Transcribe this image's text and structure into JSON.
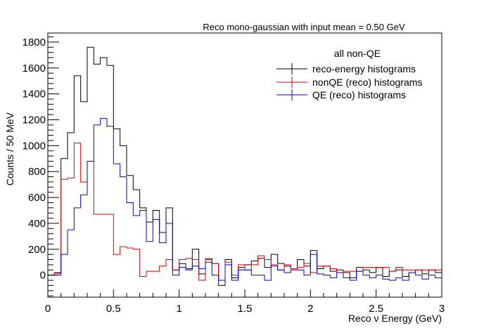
{
  "chart_data": {
    "type": "histogram",
    "title": "Reco mono-gaussian with input mean = 0.50 GeV",
    "xlabel": "Reco ν Energy (GeV)",
    "ylabel": "Counts / 50 MeV",
    "xlim": [
      0,
      3
    ],
    "ylim": [
      -170,
      1870
    ],
    "x_ticks": [
      "0",
      "0.5",
      "1",
      "1.5",
      "2",
      "2.5",
      "3"
    ],
    "y_ticks": [
      "0",
      "200",
      "400",
      "600",
      "800",
      "1000",
      "1200",
      "1400",
      "1600",
      "1800"
    ],
    "bin_width": 0.05,
    "bin_start": 0,
    "legend": {
      "header": "all non-QE",
      "position": "top-right",
      "entries": [
        "reco-energy histograms",
        "nonQE (reco) histograms",
        "QE (reco) histograms"
      ]
    },
    "series": [
      {
        "name": "reco-energy histograms",
        "color": "#000000",
        "values": [
          0,
          15,
          900,
          1100,
          1540,
          1340,
          1760,
          1630,
          1680,
          1620,
          1130,
          1000,
          770,
          660,
          520,
          410,
          500,
          330,
          520,
          40,
          90,
          50,
          200,
          10,
          120,
          90,
          -80,
          120,
          -20,
          60,
          80,
          110,
          130,
          60,
          160,
          90,
          70,
          50,
          120,
          70,
          190,
          50,
          70,
          30,
          40,
          20,
          -20,
          60,
          40,
          20,
          60,
          -10,
          30,
          40,
          -10,
          20,
          40,
          10,
          40,
          20
        ]
      },
      {
        "name": "nonQE (reco) histograms",
        "color": "#e00000",
        "values": [
          0,
          20,
          740,
          750,
          1020,
          720,
          880,
          470,
          470,
          470,
          160,
          220,
          210,
          200,
          -10,
          30,
          30,
          70,
          120,
          40,
          120,
          130,
          120,
          -40,
          130,
          90,
          -40,
          100,
          0,
          80,
          40,
          80,
          150,
          120,
          80,
          40,
          80,
          50,
          60,
          90,
          20,
          70,
          70,
          50,
          20,
          30,
          30,
          30,
          60,
          60,
          60,
          60,
          30,
          60,
          40,
          40,
          40,
          40,
          40,
          40
        ]
      },
      {
        "name": "QE (reco) histograms",
        "color": "#0000dd",
        "values": [
          0,
          0,
          160,
          350,
          520,
          620,
          880,
          1160,
          1210,
          1150,
          860,
          760,
          560,
          460,
          500,
          260,
          430,
          250,
          400,
          0,
          60,
          40,
          70,
          50,
          100,
          0,
          -40,
          80,
          -40,
          40,
          40,
          0,
          0,
          -40,
          70,
          40,
          20,
          40,
          40,
          0,
          160,
          10,
          0,
          -20,
          20,
          -20,
          -40,
          30,
          0,
          -20,
          0,
          -30,
          -40,
          -20,
          -40,
          20,
          0,
          -30,
          0,
          -20
        ]
      }
    ]
  }
}
